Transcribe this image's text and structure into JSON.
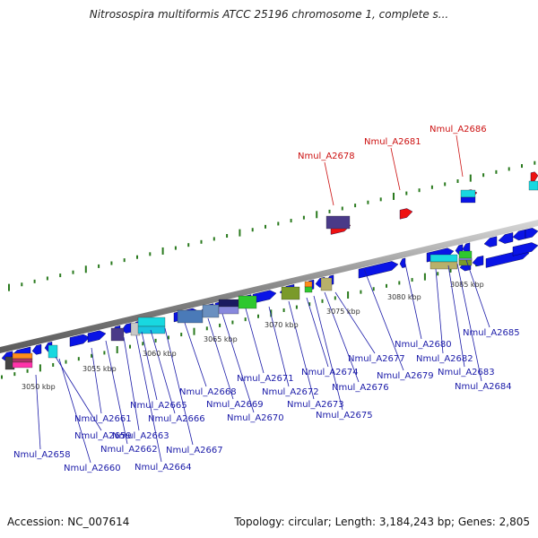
{
  "title": "Nitrosospira multiformis ATCC 25196 chromosome 1, complete s...",
  "footer": {
    "accession": "Accession: NC_007614",
    "topology": "Topology: circular; Length: 3,184,243 bp; Genes: 2,805"
  },
  "colors": {
    "gene_blue": "#0a14e6",
    "highlight_red": "#ee1111",
    "label_blue": "#1a1aa8",
    "label_red": "#cc1111",
    "tick_green": "#2a7a1e",
    "backbone": "#a0a0a0"
  },
  "kbp_labels": [
    "3050 kbp",
    "3055 kbp",
    "3060 kbp",
    "3065 kbp",
    "3070 kbp",
    "3075 kbp",
    "3080 kbp",
    "3085 kbp"
  ],
  "gene_labels": [
    "Nmul_A2658",
    "Nmul_A2659",
    "Nmul_A2660",
    "Nmul_A2661",
    "Nmul_A2662",
    "Nmul_A2663",
    "Nmul_A2664",
    "Nmul_A2665",
    "Nmul_A2666",
    "Nmul_A2667",
    "Nmul_A2668",
    "Nmul_A2669",
    "Nmul_A2670",
    "Nmul_A2671",
    "Nmul_A2672",
    "Nmul_A2673",
    "Nmul_A2674",
    "Nmul_A2675",
    "Nmul_A2676",
    "Nmul_A2677",
    "Nmul_A2679",
    "Nmul_A2680",
    "Nmul_A2682",
    "Nmul_A2683",
    "Nmul_A2684",
    "Nmul_A2685"
  ],
  "highlight_labels": [
    "Nmul_A2678",
    "Nmul_A2681",
    "Nmul_A2686"
  ]
}
